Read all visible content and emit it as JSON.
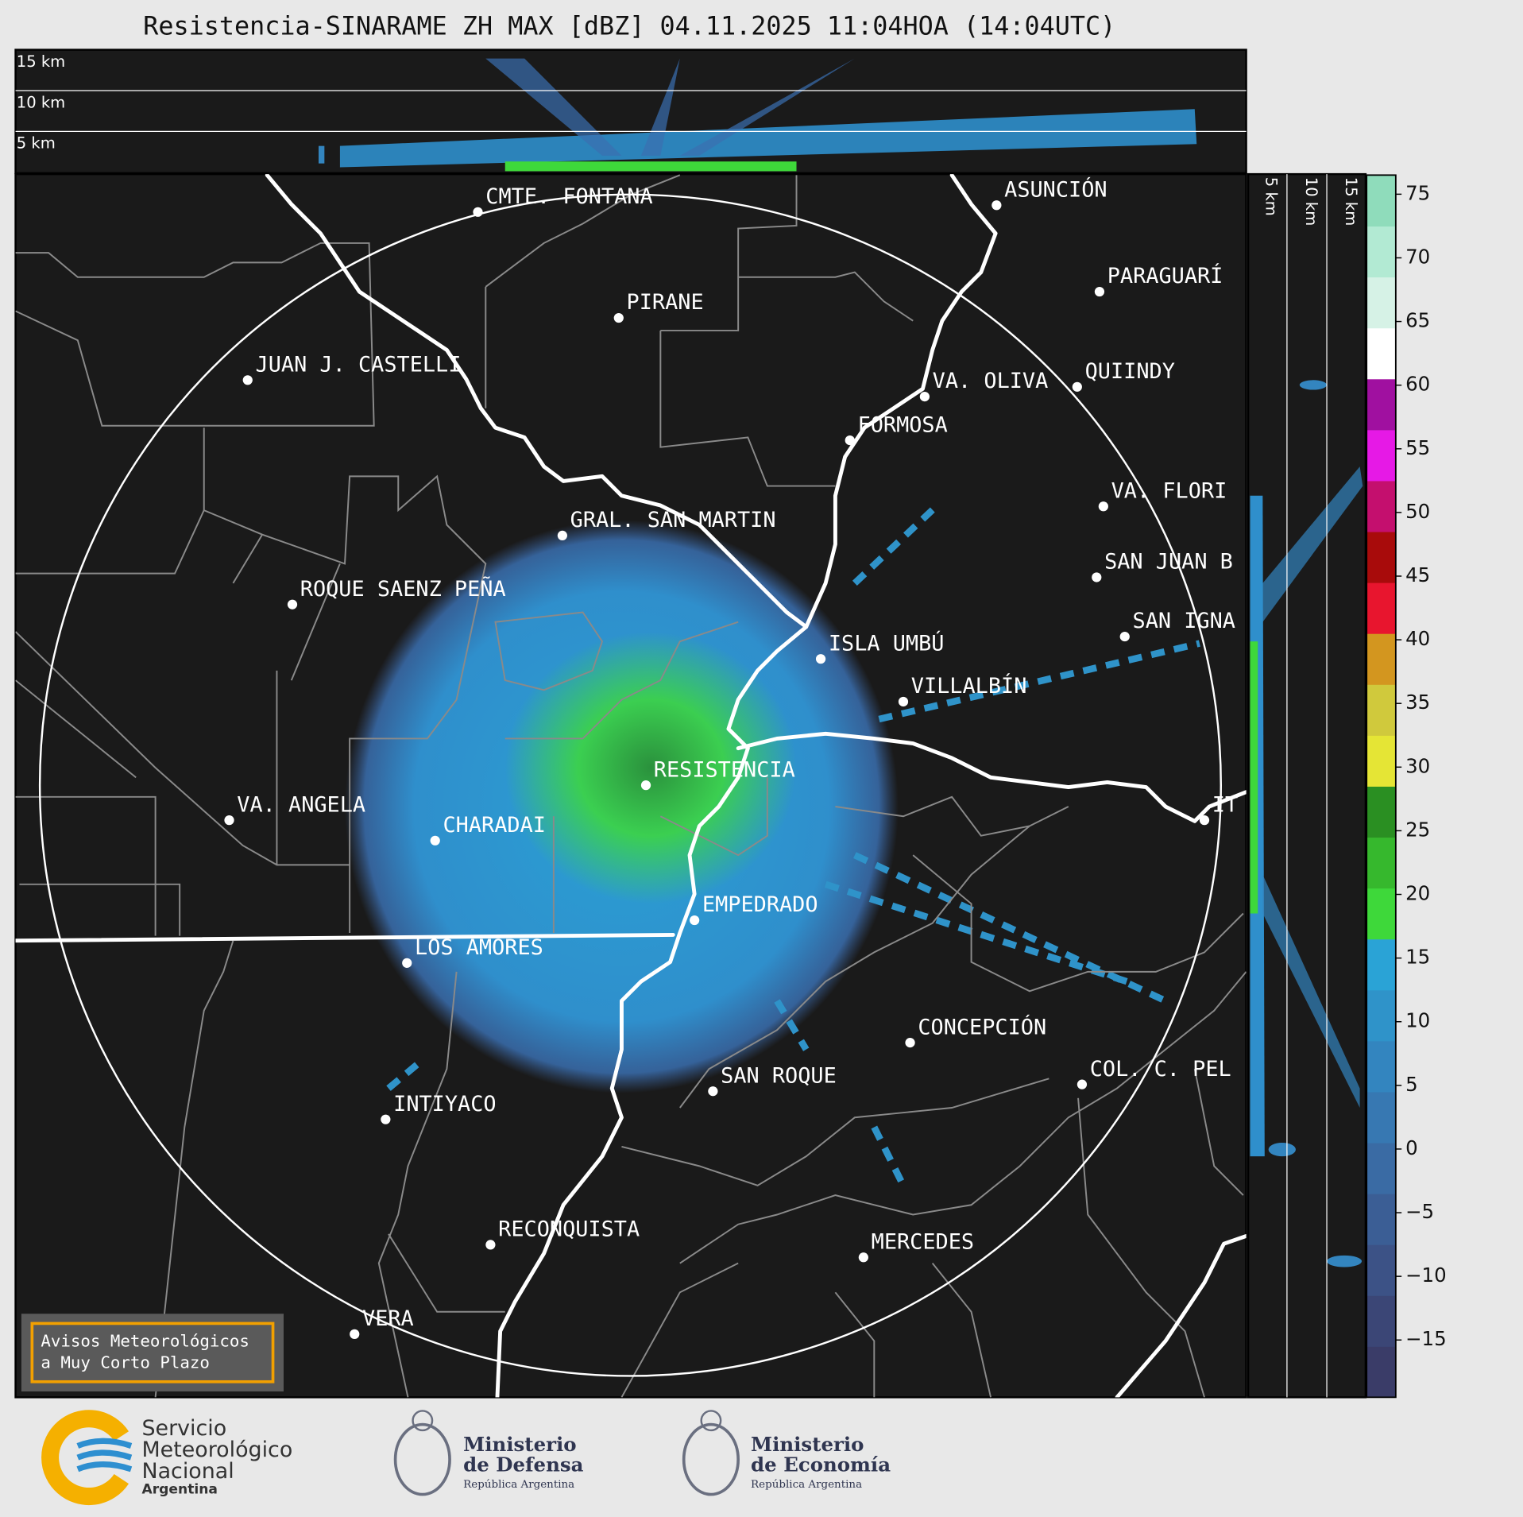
{
  "title": "Resistencia-SINARAME ZH MAX [dBZ] 04.11.2025 11:04HOA (14:04UTC)",
  "profile_top": {
    "labels": [
      "15 km",
      "10 km",
      "5 km"
    ]
  },
  "profile_side": {
    "labels": [
      "5 km",
      "10 km",
      "15 km"
    ]
  },
  "cities": [
    {
      "name": "CMTE. FONTANA"
    },
    {
      "name": "PIRANE"
    },
    {
      "name": "JUAN J. CASTELLI"
    },
    {
      "name": "ASUNCIÓN"
    },
    {
      "name": "PARAGUARÍ"
    },
    {
      "name": "QUIINDY"
    },
    {
      "name": "VA. OLIVA"
    },
    {
      "name": "FORMOSA"
    },
    {
      "name": "VA. FLORI"
    },
    {
      "name": "GRAL. SAN MARTIN"
    },
    {
      "name": "SAN JUAN B"
    },
    {
      "name": "ROQUE SAENZ PEÑA"
    },
    {
      "name": "SAN IGNA"
    },
    {
      "name": "ISLA UMBÚ"
    },
    {
      "name": "VILLALBÍN"
    },
    {
      "name": "RESISTENCIA"
    },
    {
      "name": "VA. ANGELA"
    },
    {
      "name": "CHARADAI"
    },
    {
      "name": "IT"
    },
    {
      "name": "EMPEDRADO"
    },
    {
      "name": "LOS AMORES"
    },
    {
      "name": "CONCEPCIÓN"
    },
    {
      "name": "COL. C. PEL"
    },
    {
      "name": "SAN ROQUE"
    },
    {
      "name": "INTIYACO"
    },
    {
      "name": "RECONQUISTA"
    },
    {
      "name": "MERCEDES"
    },
    {
      "name": "VERA"
    }
  ],
  "colorbar": {
    "lim": [
      -19.5,
      76.5
    ],
    "ticks": [
      75,
      70,
      65,
      60,
      55,
      50,
      45,
      40,
      35,
      30,
      25,
      20,
      15,
      10,
      5,
      0,
      {
        "value": -5,
        "label": "−5"
      },
      {
        "value": -10,
        "label": "−10"
      },
      {
        "value": -15,
        "label": "−15"
      }
    ],
    "colors": [
      "#3a3c68",
      "#3b4676",
      "#3c5286",
      "#3b5e95",
      "#3a6ba4",
      "#3778b2",
      "#3385bf",
      "#2f93c9",
      "#2aa3d6",
      "#3ed83a",
      "#36b82d",
      "#2a8f22",
      "#e5e535",
      "#d0c93c",
      "#d3961f",
      "#e8152e",
      "#a80b0b",
      "#c40f6e",
      "#e619e6",
      "#a010a0",
      "#ffffff",
      "#d6f2e6",
      "#b2ead3",
      "#8fdcbb"
    ]
  },
  "notice": {
    "lines": [
      "Avisos Meteorológicos",
      "a Muy Corto Plazo"
    ]
  },
  "logos": {
    "smn": {
      "lines": [
        "Servicio",
        "Meteorológico",
        "Nacional"
      ],
      "country": "Argentina"
    },
    "defensa": {
      "lines": [
        "Ministerio",
        "de Defensa"
      ],
      "country": "República Argentina"
    },
    "economia": {
      "lines": [
        "Ministerio",
        "de Economía"
      ],
      "country": "República Argentina"
    }
  }
}
